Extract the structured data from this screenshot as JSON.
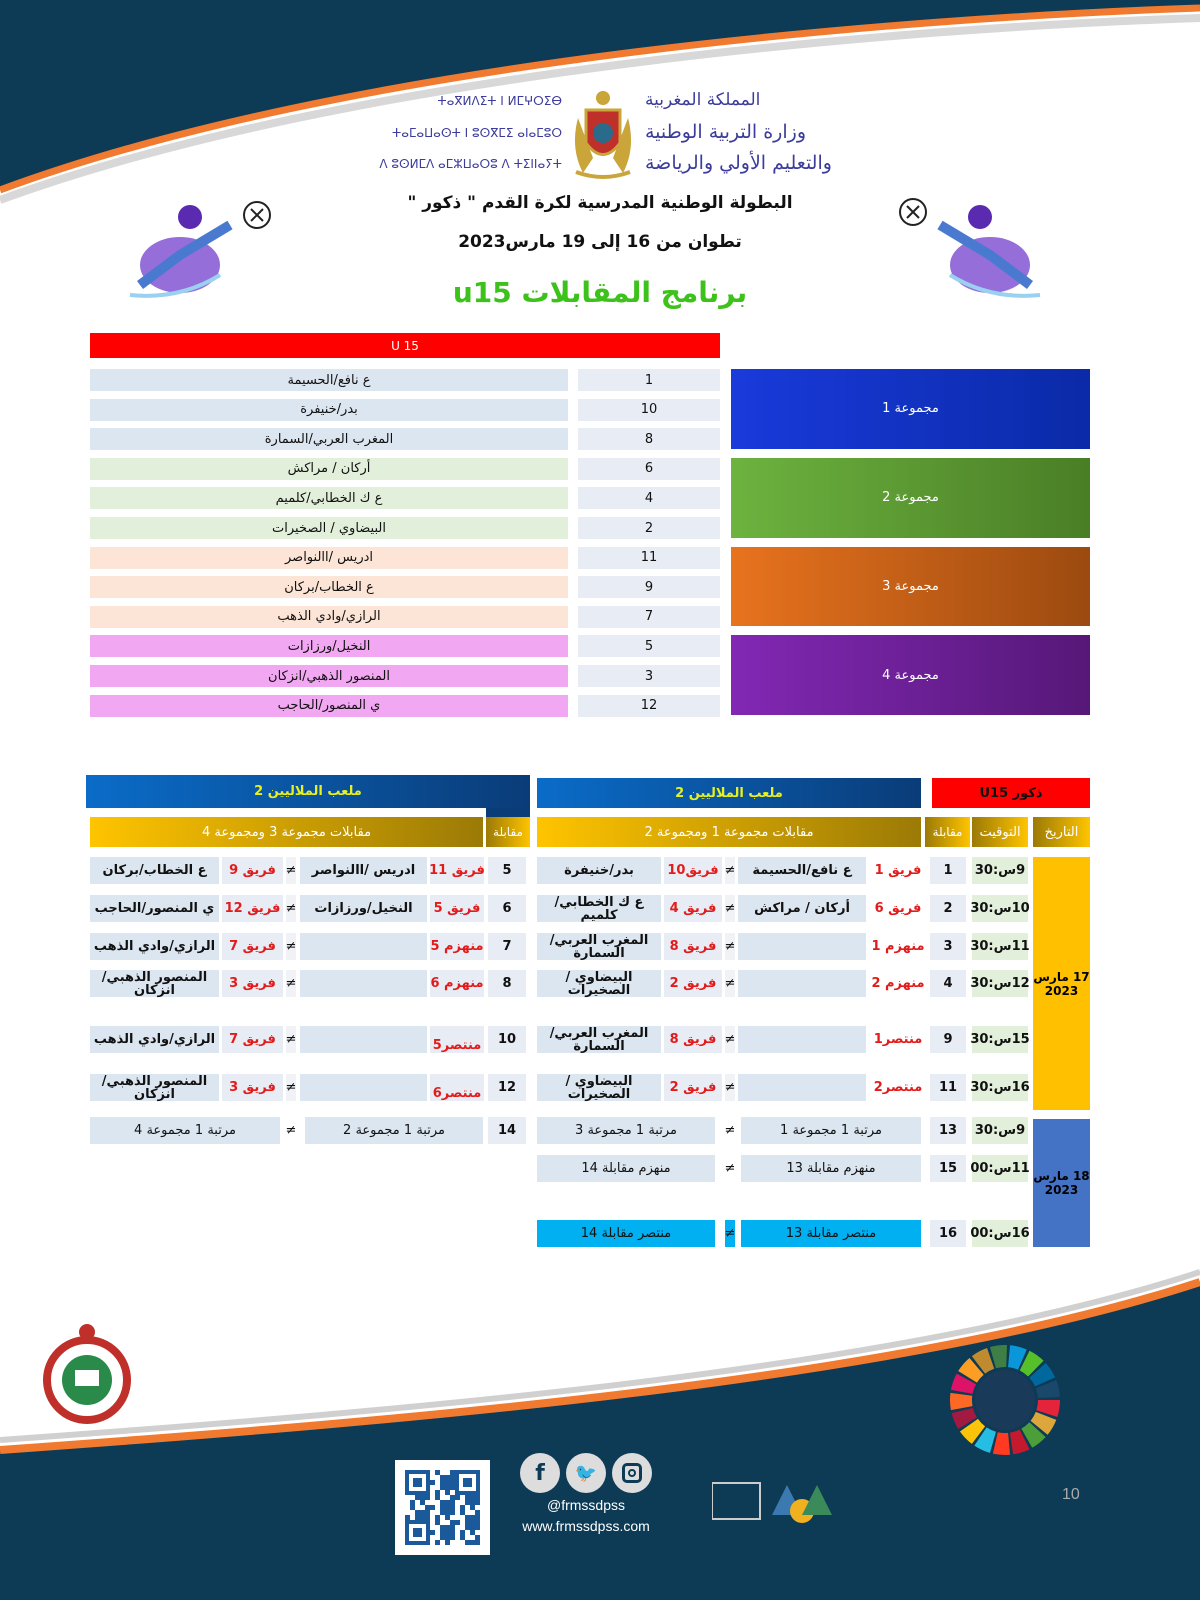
{
  "header": {
    "tifinagh_lines": [
      "ⵜⴰⴳⵍⴷⵉⵜ ⵏ ⵍⵎⵖⵔⵉⴱ",
      "ⵜⴰⵎⴰⵡⴰⵙⵜ ⵏ ⵓⵙⴳⵎⵉ ⴰⵏⴰⵎⵓⵔ",
      "ⴷ ⵓⵙⵍⵎⴷ ⴰⵎⵣⵡⴰⵔⵓ ⴷ ⵜⵉⵏⵏⴰⵢⵜ"
    ],
    "arabic_lines": [
      "المملكة المغربية",
      "وزارة التربية الوطنية",
      "والتعليم الأولي والرياضة"
    ],
    "title": "البطولة الوطنية المدرسية  لكرة القدم \" ذكور \"",
    "subtitle": "تطوان  من 16 إلى 19 مارس2023",
    "program_title": "برنامج المقابلات  u15"
  },
  "groups_table": {
    "header": "U 15",
    "groups": [
      {
        "label": "مجموعة 1",
        "color": "#1a3adb",
        "row_color": "#dce6f1",
        "teams": [
          {
            "no": "1",
            "name": "ع نافع/الحسيمة"
          },
          {
            "no": "10",
            "name": "بدر/خنيفرة"
          },
          {
            "no": "8",
            "name": "المغرب العربي/السمارة"
          }
        ]
      },
      {
        "label": "مجموعة 2",
        "color": "#6db33f",
        "row_color": "#e2efda",
        "teams": [
          {
            "no": "6",
            "name": "أركان / مراكش"
          },
          {
            "no": "4",
            "name": "ع ك الخطابي/كلميم"
          },
          {
            "no": "2",
            "name": "البيضاوي / الصخيرات"
          }
        ]
      },
      {
        "label": "مجموعة 3",
        "color": "#e8731e",
        "row_color": "#fce4d6",
        "teams": [
          {
            "no": "11",
            "name": "ادريس /االنواصر"
          },
          {
            "no": "9",
            "name": "ع الخطاب/بركان"
          },
          {
            "no": "7",
            "name": "الرازي/وادي الذهب"
          }
        ]
      },
      {
        "label": "مجموعة 4",
        "color": "#8228b4",
        "row_color": "#f2a7f2",
        "teams": [
          {
            "no": "5",
            "name": "النخيل/ورزازات"
          },
          {
            "no": "3",
            "name": "المنصور الذهبي/انزكان"
          },
          {
            "no": "12",
            "name": "ي المنصور/الحاجب"
          }
        ]
      }
    ]
  },
  "schedule": {
    "category": "ذكور U15",
    "venue_right": "ملعب الملاليين 2",
    "venue_left": "ملعب الملاليين 2",
    "col_date": "التاريخ",
    "col_time": "التوقيت",
    "col_match": "مقابلة",
    "col_match_left": "مقابلة",
    "right_group_header": "مقابلات مجموعة 1  ومجموعة 2",
    "left_group_header": "مقابلات مجموعة 3  ومجموعة 4",
    "vs_symbol": "≠",
    "dates": [
      {
        "day": "17 مارس",
        "year": "2023",
        "color": "#ffc000"
      },
      {
        "day": "18 مارس",
        "year": "2023",
        "color": "#4472c4"
      }
    ],
    "rows": [
      {
        "time": "9س:30",
        "right": {
          "no": "1",
          "la": "فريق 1",
          "na": "ع نافع/الحسيمة",
          "lb": "فريق10",
          "nb": "بدر/خنيفرة"
        },
        "left": {
          "no": "5",
          "la": "فريق 11",
          "na": "ادريس /االنواصر",
          "lb": "فريق 9",
          "nb": "ع الخطاب/بركان"
        }
      },
      {
        "time": "10س:30",
        "right": {
          "no": "2",
          "la": "فريق 6",
          "na": "أركان / مراكش",
          "lb": "فريق 4",
          "nb": "ع ك الخطابي/كلميم"
        },
        "left": {
          "no": "6",
          "la": "فريق 5",
          "na": "النخيل/ورزازات",
          "lb": "فريق 12",
          "nb": "ي المنصور/الحاجب"
        }
      },
      {
        "time": "11س:30",
        "right": {
          "no": "3",
          "la": "منهزم 1",
          "na": "",
          "lb": "فريق 8",
          "nb": "المغرب العربي/السمارة"
        },
        "left": {
          "no": "7",
          "la": "منهزم 5",
          "na": "",
          "lb": "فريق 7",
          "nb": "الرازي/وادي الذهب"
        }
      },
      {
        "time": "12س:30",
        "right": {
          "no": "4",
          "la": "منهزم 2",
          "na": "",
          "lb": "فريق 2",
          "nb": "البيضاوي / الصخيرات"
        },
        "left": {
          "no": "8",
          "la": "منهزم 6",
          "na": "",
          "lb": "فريق 3",
          "nb": "المنصور الذهبي/انزكان"
        }
      },
      {
        "time": "15س:30",
        "right": {
          "no": "9",
          "la": "منتصر1",
          "na": "",
          "lb": "فريق 8",
          "nb": "المغرب العربي/السمارة"
        },
        "left": {
          "no": "10",
          "la": "منتصر5",
          "na": "",
          "lb": "فريق 7",
          "nb": "الرازي/وادي الذهب"
        }
      },
      {
        "time": "16س:30",
        "right": {
          "no": "11",
          "la": "منتصر2",
          "na": "",
          "lb": "فريق 2",
          "nb": "البيضاوي / الصخيرات"
        },
        "left": {
          "no": "12",
          "la": "منتصر6",
          "na": "",
          "lb": "فريق 3",
          "nb": "المنصور الذهبي/انزكان"
        }
      },
      {
        "time": "9س:30",
        "right": {
          "no": "13",
          "wa": "مرتبة 1 مجموعة 1",
          "wb": "مرتبة 1 مجموعة 3"
        },
        "left": {
          "no": "14",
          "wa": "مرتبة 1 مجموعة 2",
          "wb": "مرتبة 1 مجموعة 4"
        }
      },
      {
        "time": "11س:00",
        "right": {
          "no": "15",
          "wa": "منهزم مقابلة 13",
          "wb": "منهزم  مقابلة 14"
        }
      },
      {
        "time": "16س:00",
        "right": {
          "no": "16",
          "wa": "منتصر مقابلة 13",
          "wb": "منتصر مقابلة 14",
          "highlight": "#00b0f0"
        }
      }
    ]
  },
  "footer": {
    "social_icons": [
      "facebook-icon",
      "twitter-icon",
      "instagram-icon"
    ],
    "handle": "@frmssdpss",
    "website": "www.frmssdpss.com",
    "page_number": "10",
    "colors": {
      "navy": "#0d3a55",
      "orange": "#f07a30"
    }
  }
}
